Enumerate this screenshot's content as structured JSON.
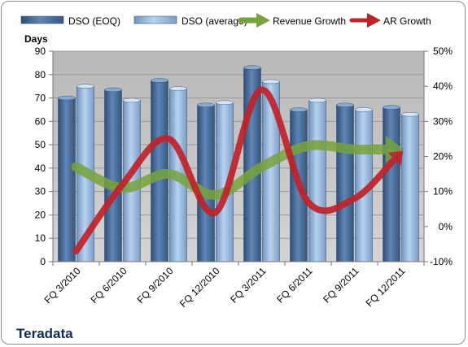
{
  "chart_data": {
    "type": "bar",
    "title": "Teradata",
    "ylabel": "Days",
    "categories": [
      "FQ 3/2010",
      "FQ 6/2010",
      "FQ 9/2010",
      "FQ 12/2010",
      "FQ 3/2011",
      "FQ 6/2011",
      "FQ 9/2011",
      "FQ 12/2011"
    ],
    "ylim": [
      0,
      90
    ],
    "yticks": [
      "0",
      "10",
      "20",
      "30",
      "40",
      "50",
      "60",
      "70",
      "80",
      "90"
    ],
    "y2lim": [
      -10,
      50
    ],
    "y2ticks": [
      "-10%",
      "0%",
      "10%",
      "20%",
      "30%",
      "40%",
      "50%"
    ],
    "grid": true,
    "legend_position": "top",
    "series": [
      {
        "name": "DSO (EOQ)",
        "kind": "bar",
        "axis": "left",
        "color": "#4a6f9c",
        "values": [
          70,
          73.5,
          77.5,
          67,
          83,
          65,
          67,
          66
        ]
      },
      {
        "name": "DSO (average)",
        "kind": "bar",
        "axis": "left",
        "color": "#8fb1d9",
        "values": [
          75,
          69,
          74,
          68,
          77,
          69,
          65,
          63
        ]
      },
      {
        "name": "Revenue Growth",
        "kind": "arrow-line",
        "axis": "right",
        "color": "#77a33c",
        "values": [
          17,
          11,
          15,
          9,
          17,
          23,
          22,
          22
        ]
      },
      {
        "name": "AR Growth",
        "kind": "arrow-line",
        "axis": "right",
        "color": "#c0222a",
        "values": [
          -7,
          12,
          25,
          4,
          39,
          7,
          8,
          21
        ]
      }
    ]
  }
}
